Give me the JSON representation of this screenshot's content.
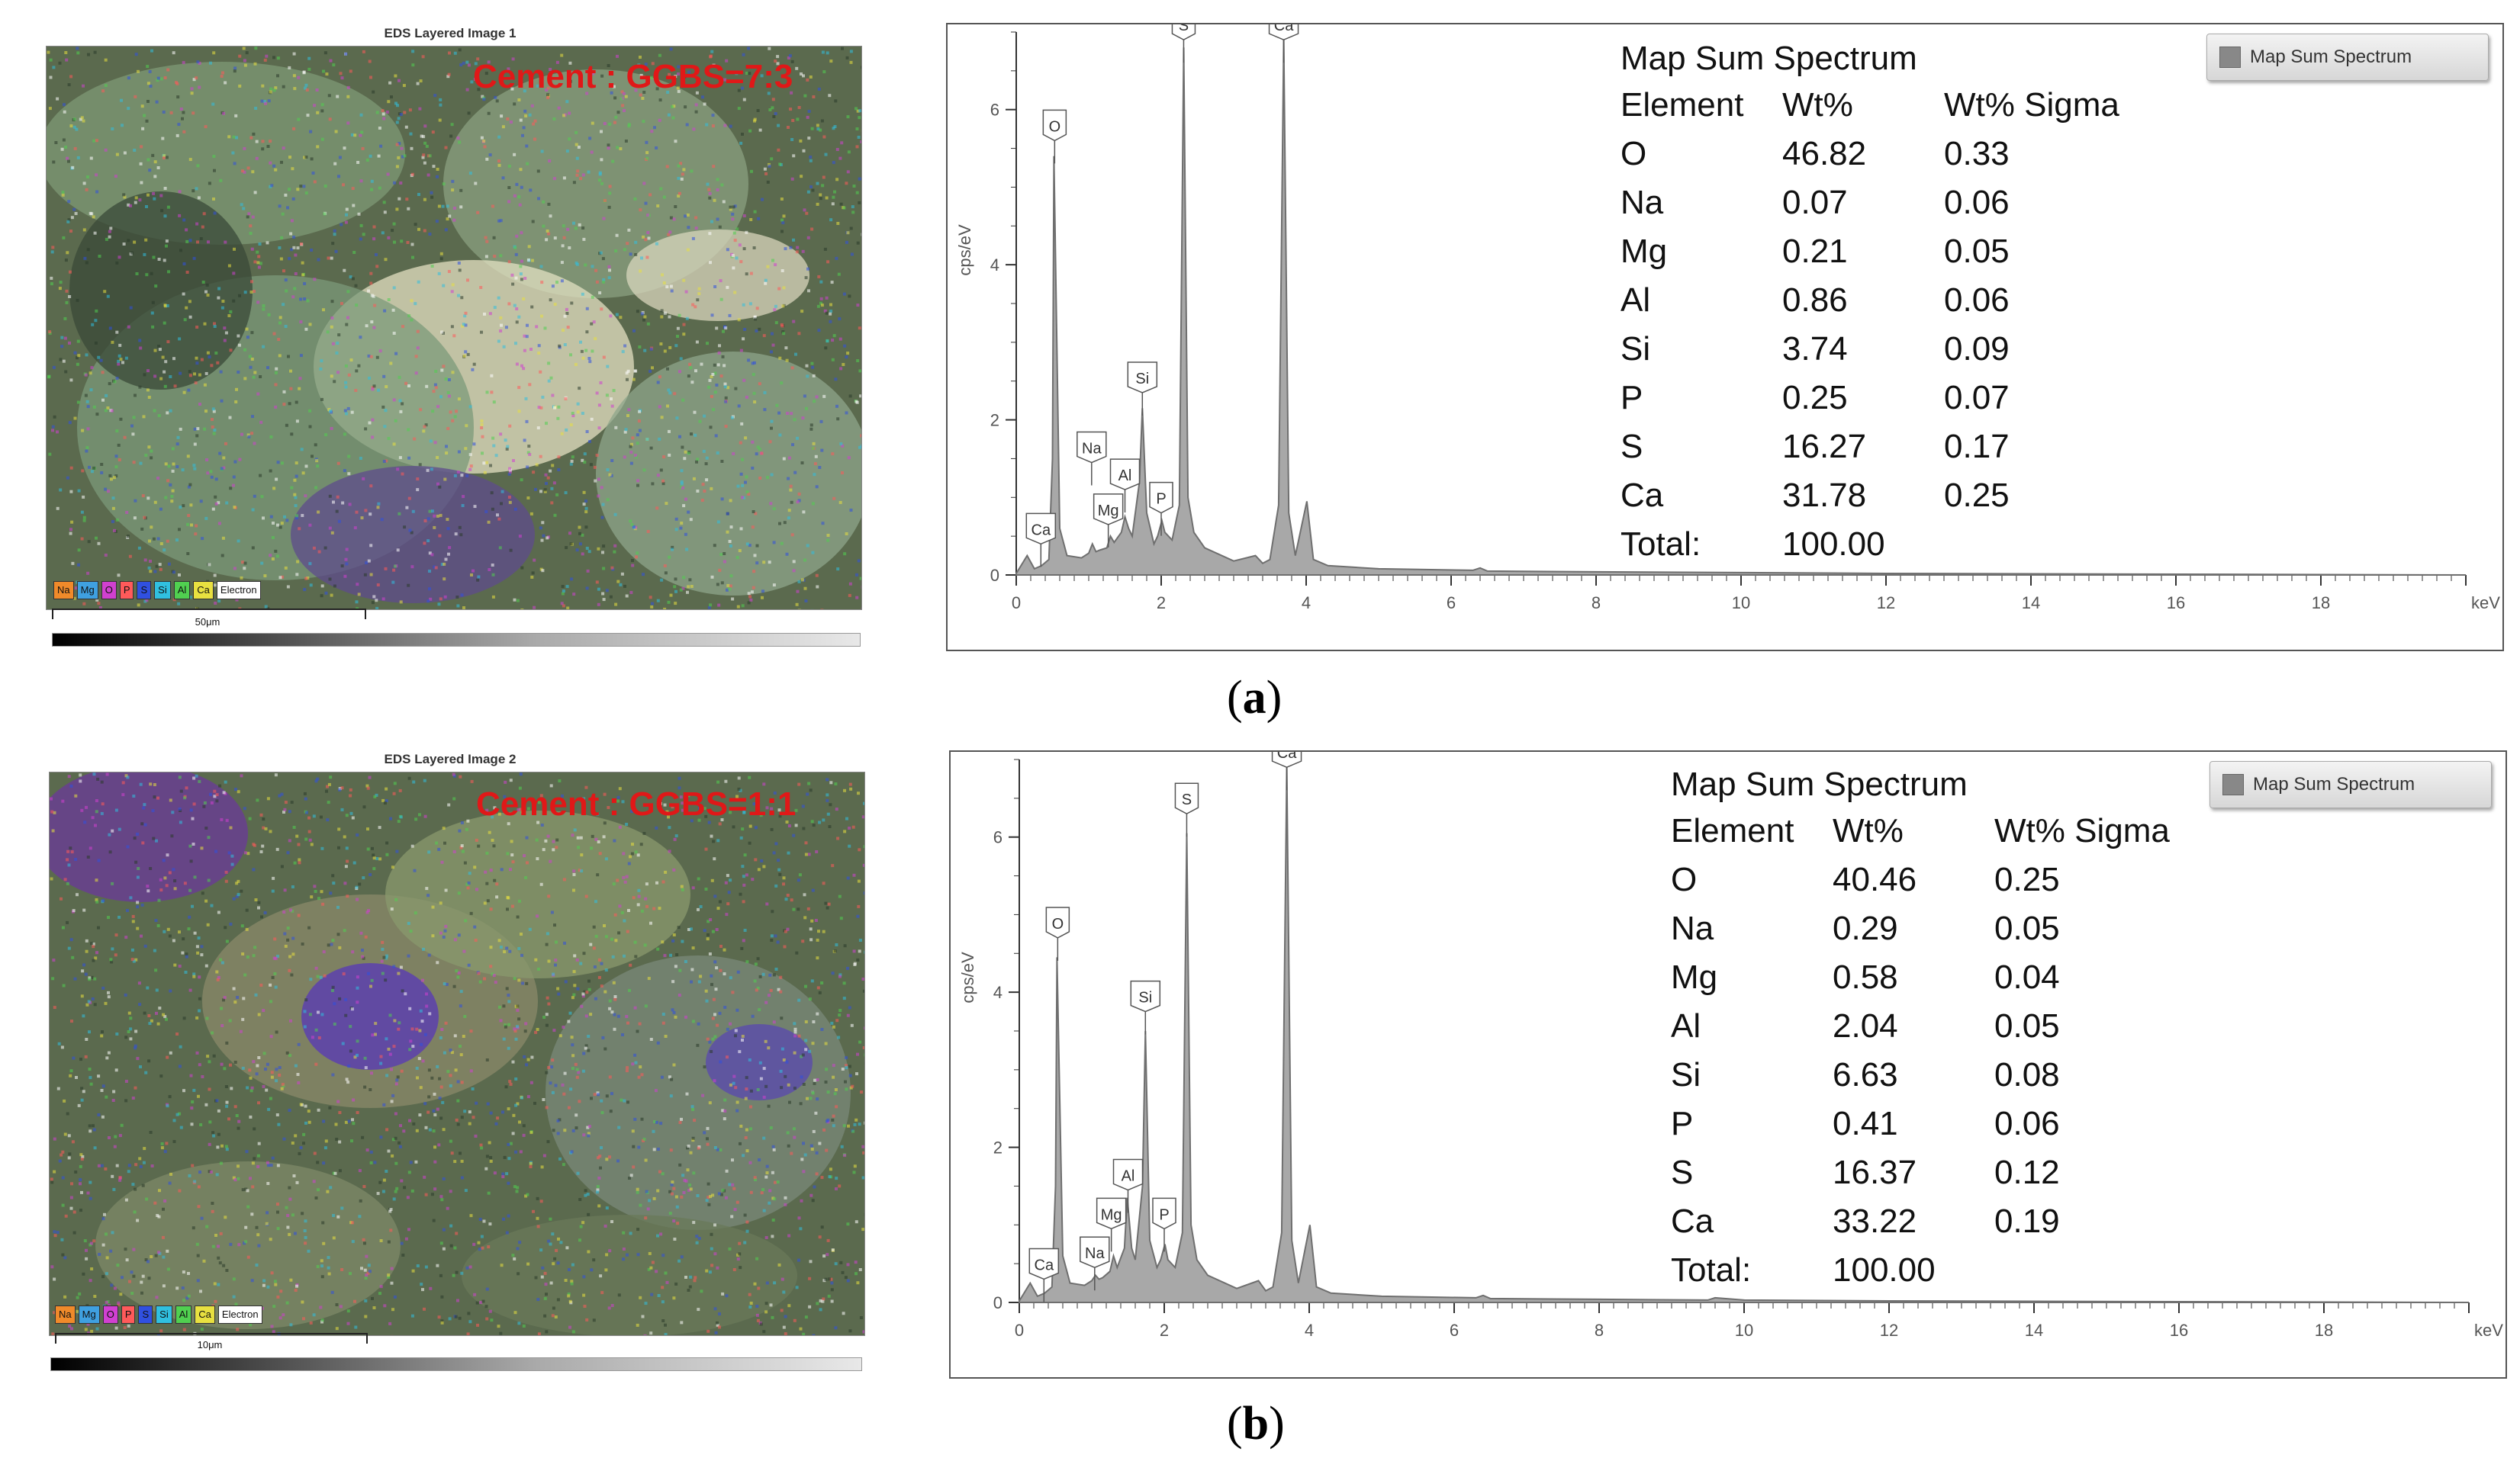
{
  "colors": {
    "spectrum_fill": "#a8a8a8",
    "spectrum_stroke": "#6f6f6f",
    "ratio_text": "#e01818"
  },
  "panels": [
    {
      "caption_letter": "a",
      "map": {
        "title": "EDS Layered Image 1",
        "ratio_label": "Cement : GGBS=7:3",
        "scale_label": "50μm",
        "legend": [
          {
            "label": "Na",
            "color": "#f08a2a"
          },
          {
            "label": "Mg",
            "color": "#3fa0e0"
          },
          {
            "label": "O",
            "color": "#d040d0"
          },
          {
            "label": "P",
            "color": "#ff5a5a"
          },
          {
            "label": "S",
            "color": "#3050e0"
          },
          {
            "label": "Si",
            "color": "#30c0e0"
          },
          {
            "label": "Al",
            "color": "#50d050"
          },
          {
            "label": "Ca",
            "color": "#e8e040"
          },
          {
            "label": "Electron",
            "color": "#ffffff"
          }
        ]
      },
      "legend_label": "Map Sum Spectrum",
      "stats": {
        "title": "Map Sum Spectrum",
        "headers": [
          "Element",
          "Wt%",
          "Wt% Sigma"
        ],
        "rows": [
          [
            "O",
            "46.82",
            "0.33"
          ],
          [
            "Na",
            "0.07",
            "0.06"
          ],
          [
            "Mg",
            "0.21",
            "0.05"
          ],
          [
            "Al",
            "0.86",
            "0.06"
          ],
          [
            "Si",
            "3.74",
            "0.09"
          ],
          [
            "P",
            "0.25",
            "0.07"
          ],
          [
            "S",
            "16.27",
            "0.17"
          ],
          [
            "Ca",
            "31.78",
            "0.25"
          ]
        ],
        "total_label": "Total:",
        "total_value": "100.00"
      }
    },
    {
      "caption_letter": "b",
      "map": {
        "title": "EDS Layered Image 2",
        "ratio_label": "Cement : GGBS=1:1",
        "scale_label": "10μm",
        "legend": [
          {
            "label": "Na",
            "color": "#f08a2a"
          },
          {
            "label": "Mg",
            "color": "#3fa0e0"
          },
          {
            "label": "O",
            "color": "#d040d0"
          },
          {
            "label": "P",
            "color": "#ff5a5a"
          },
          {
            "label": "S",
            "color": "#3050e0"
          },
          {
            "label": "Si",
            "color": "#30c0e0"
          },
          {
            "label": "Al",
            "color": "#50d050"
          },
          {
            "label": "Ca",
            "color": "#e8e040"
          },
          {
            "label": "Electron",
            "color": "#ffffff"
          }
        ]
      },
      "legend_label": "Map Sum Spectrum",
      "stats": {
        "title": "Map Sum Spectrum",
        "headers": [
          "Element",
          "Wt%",
          "Wt% Sigma"
        ],
        "rows": [
          [
            "O",
            "40.46",
            "0.25"
          ],
          [
            "Na",
            "0.29",
            "0.05"
          ],
          [
            "Mg",
            "0.58",
            "0.04"
          ],
          [
            "Al",
            "2.04",
            "0.05"
          ],
          [
            "Si",
            "6.63",
            "0.08"
          ],
          [
            "P",
            "0.41",
            "0.06"
          ],
          [
            "S",
            "16.37",
            "0.12"
          ],
          [
            "Ca",
            "33.22",
            "0.19"
          ]
        ],
        "total_label": "Total:",
        "total_value": "100.00"
      }
    }
  ],
  "chart_data": [
    {
      "type": "area",
      "ylabel": "cps/eV",
      "xlabel": "keV",
      "xlim": [
        0,
        20
      ],
      "ylim": [
        0,
        7
      ],
      "x_ticks": [
        0,
        2,
        4,
        6,
        8,
        10,
        12,
        14,
        16,
        18
      ],
      "y_ticks": [
        0,
        2,
        4,
        6
      ],
      "series": [
        {
          "name": "Map Sum Spectrum",
          "x": [
            0.0,
            0.15,
            0.25,
            0.35,
            0.45,
            0.5,
            0.52,
            0.6,
            0.7,
            0.9,
            1.0,
            1.05,
            1.1,
            1.15,
            1.25,
            1.3,
            1.35,
            1.45,
            1.5,
            1.55,
            1.6,
            1.7,
            1.74,
            1.8,
            1.9,
            1.95,
            2.01,
            2.05,
            2.15,
            2.25,
            2.31,
            2.37,
            2.45,
            2.6,
            3.0,
            3.3,
            3.4,
            3.5,
            3.62,
            3.69,
            3.76,
            3.85,
            4.01,
            4.1,
            4.3,
            5.0,
            6.3,
            6.4,
            6.5,
            8.0,
            10.0,
            12.0,
            20.0
          ],
          "y": [
            0.02,
            0.25,
            0.08,
            0.12,
            0.2,
            1.5,
            5.4,
            0.6,
            0.25,
            0.22,
            0.28,
            0.4,
            0.3,
            0.32,
            0.35,
            0.5,
            0.42,
            0.55,
            0.75,
            0.6,
            0.5,
            1.2,
            2.15,
            0.8,
            0.4,
            0.5,
            0.7,
            0.55,
            0.45,
            0.9,
            6.8,
            1.0,
            0.55,
            0.35,
            0.18,
            0.25,
            0.15,
            0.2,
            0.9,
            6.9,
            0.8,
            0.25,
            0.95,
            0.2,
            0.12,
            0.08,
            0.06,
            0.09,
            0.05,
            0.04,
            0.03,
            0.02,
            0.0
          ]
        }
      ],
      "peak_labels": [
        {
          "label": "O",
          "x": 0.53,
          "y": 5.6
        },
        {
          "label": "Ca",
          "x": 0.34,
          "y": 0.4
        },
        {
          "label": "Na",
          "x": 1.04,
          "y": 1.45
        },
        {
          "label": "Mg",
          "x": 1.27,
          "y": 0.65
        },
        {
          "label": "Al",
          "x": 1.5,
          "y": 1.1
        },
        {
          "label": "P",
          "x": 2.0,
          "y": 0.8
        },
        {
          "label": "Si",
          "x": 1.74,
          "y": 2.35
        },
        {
          "label": "S",
          "x": 2.31,
          "y": 6.9
        },
        {
          "label": "Ca",
          "x": 3.69,
          "y": 6.9
        }
      ]
    },
    {
      "type": "area",
      "ylabel": "cps/eV",
      "xlabel": "keV",
      "xlim": [
        0,
        20
      ],
      "ylim": [
        0,
        7
      ],
      "x_ticks": [
        0,
        2,
        4,
        6,
        8,
        10,
        12,
        14,
        16,
        18
      ],
      "y_ticks": [
        0,
        2,
        4,
        6
      ],
      "series": [
        {
          "name": "Map Sum Spectrum",
          "x": [
            0.0,
            0.15,
            0.25,
            0.35,
            0.45,
            0.5,
            0.52,
            0.6,
            0.7,
            0.9,
            1.0,
            1.05,
            1.1,
            1.15,
            1.25,
            1.3,
            1.35,
            1.45,
            1.49,
            1.55,
            1.6,
            1.7,
            1.74,
            1.8,
            1.9,
            1.95,
            2.01,
            2.05,
            2.15,
            2.25,
            2.31,
            2.37,
            2.45,
            2.6,
            3.0,
            3.3,
            3.4,
            3.5,
            3.62,
            3.69,
            3.76,
            3.85,
            4.01,
            4.1,
            4.3,
            5.0,
            6.3,
            6.4,
            6.5,
            8.0,
            9.5,
            9.6,
            10.0,
            12.0,
            20.0
          ],
          "y": [
            0.02,
            0.25,
            0.08,
            0.12,
            0.2,
            1.5,
            4.45,
            0.6,
            0.25,
            0.22,
            0.28,
            0.35,
            0.3,
            0.32,
            0.4,
            0.6,
            0.45,
            0.7,
            1.35,
            0.7,
            0.55,
            1.5,
            3.5,
            0.8,
            0.45,
            0.55,
            0.75,
            0.55,
            0.45,
            0.9,
            6.05,
            1.0,
            0.55,
            0.35,
            0.18,
            0.28,
            0.15,
            0.2,
            0.9,
            6.9,
            0.8,
            0.25,
            1.0,
            0.2,
            0.12,
            0.08,
            0.06,
            0.09,
            0.05,
            0.04,
            0.03,
            0.06,
            0.03,
            0.02,
            0.0
          ]
        }
      ],
      "peak_labels": [
        {
          "label": "O",
          "x": 0.53,
          "y": 4.7
        },
        {
          "label": "Ca",
          "x": 0.34,
          "y": 0.3
        },
        {
          "label": "Na",
          "x": 1.04,
          "y": 0.45
        },
        {
          "label": "Mg",
          "x": 1.27,
          "y": 0.95
        },
        {
          "label": "Al",
          "x": 1.5,
          "y": 1.45
        },
        {
          "label": "P",
          "x": 2.0,
          "y": 0.95
        },
        {
          "label": "Si",
          "x": 1.74,
          "y": 3.75
        },
        {
          "label": "S",
          "x": 2.31,
          "y": 6.3
        },
        {
          "label": "Ca",
          "x": 3.69,
          "y": 6.9
        }
      ]
    }
  ]
}
